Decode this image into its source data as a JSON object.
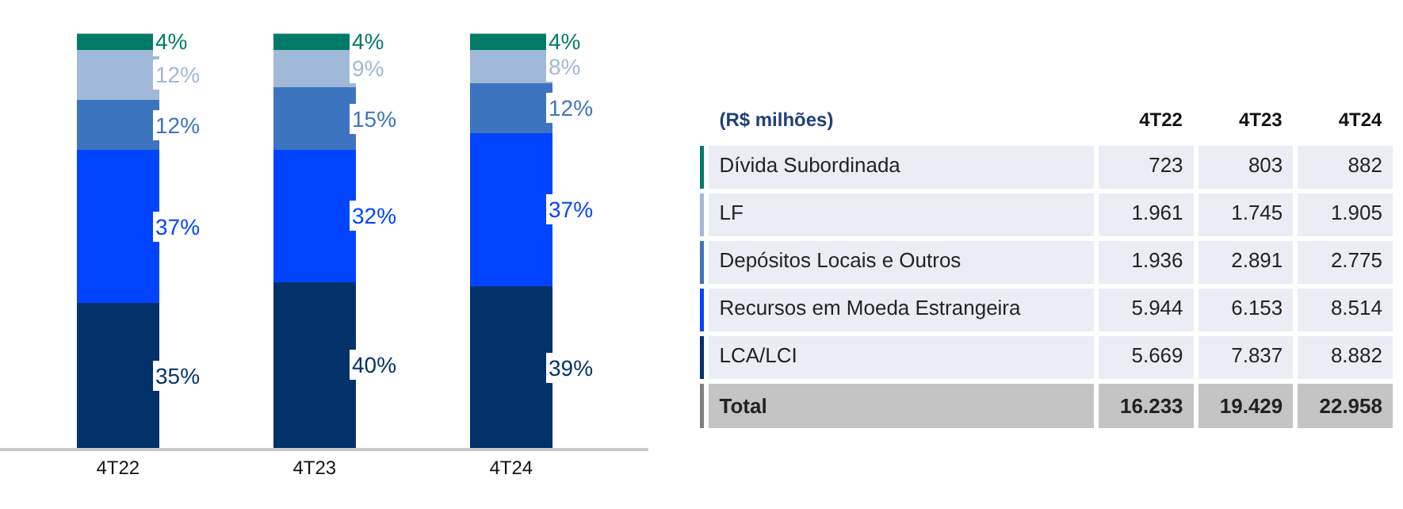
{
  "chart_data": [
    {
      "type": "bar",
      "stacked": true,
      "categories": [
        "4T22",
        "4T23",
        "4T24"
      ],
      "series": [
        {
          "color": "#03316a",
          "values": [
            35,
            40,
            39
          ],
          "value_labels": [
            "35%",
            "40%",
            "39%"
          ]
        },
        {
          "color": "#0044ff",
          "values": [
            37,
            32,
            37
          ],
          "value_labels": [
            "37%",
            "32%",
            "37%"
          ]
        },
        {
          "color": "#3d74bf",
          "values": [
            12,
            15,
            12
          ],
          "value_labels": [
            "12%",
            "15%",
            "12%"
          ]
        },
        {
          "color": "#a0b9d8",
          "values": [
            12,
            9,
            8
          ],
          "value_labels": [
            "12%",
            "9%",
            "8%"
          ]
        },
        {
          "color": "#027a68",
          "values": [
            4,
            4,
            4
          ],
          "value_labels": [
            "4%",
            "4%",
            "4%"
          ]
        }
      ]
    },
    {
      "type": "other",
      "title": "(R$ milhões)",
      "categories": [
        "4T22",
        "4T23",
        "4T24"
      ],
      "series": [
        {
          "name": "Dívida Subordinada",
          "values": [
            723,
            803,
            882
          ],
          "value_labels": [
            "723",
            "803",
            "882"
          ]
        },
        {
          "name": "LF",
          "values": [
            1961,
            1745,
            1905
          ],
          "value_labels": [
            "1.961",
            "1.745",
            "1.905"
          ]
        },
        {
          "name": "Depósitos Locais e Outros",
          "values": [
            1936,
            2891,
            2775
          ],
          "value_labels": [
            "1.936",
            "2.891",
            "2.775"
          ]
        },
        {
          "name": "Recursos em Moeda Estrangeira",
          "values": [
            5944,
            6153,
            8514
          ],
          "value_labels": [
            "5.944",
            "6.153",
            "8.514"
          ]
        },
        {
          "name": "LCA/LCI",
          "values": [
            5669,
            7837,
            8882
          ],
          "value_labels": [
            "5.669",
            "7.837",
            "8.882"
          ]
        }
      ],
      "annotations": [
        "Total"
      ],
      "totals": [
        "16.233",
        "19.429",
        "22.958"
      ]
    }
  ]
}
